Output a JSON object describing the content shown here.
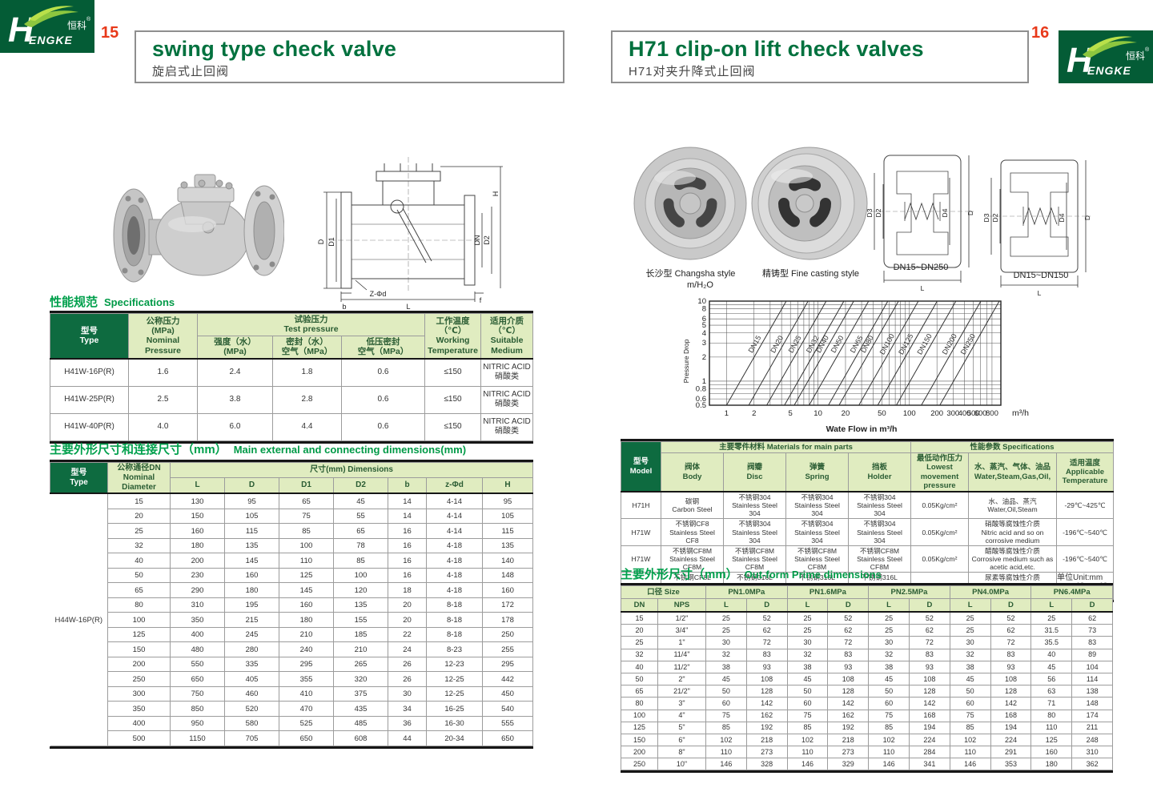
{
  "header": {
    "left_page_no": "15",
    "right_page_no": "16",
    "left_title": "swing type check valve",
    "left_subtitle": "旋启式止回阀",
    "right_title": "H71 clip-on lift check valves",
    "right_subtitle": "H71对夹升降式止回阀"
  },
  "logo": {
    "h": "H",
    "brand": "ENGKE",
    "cn": "恒科",
    "reg": "®"
  },
  "left_page": {
    "spec_title_cn": "性能规范",
    "spec_title_en": "Specifications",
    "spec_table": {
      "h_type": "型号\nType",
      "h_nominal": "公称压力\n(MPa)\nNominal\nPressure",
      "h_test": "试验压力\nTest pressure",
      "h_strength": "强度（水）\n(MPa)",
      "h_seal": "密封（水）\n空气（MPa）",
      "h_lowseal": "低压密封\n空气（MPa）",
      "h_temp": "工作温度（℃）\nWorking\nTemperature",
      "h_medium": "适用介质（℃）\nSuitable\nMedium",
      "rows": [
        {
          "type": "H41W-16P(R)",
          "nominal": "1.6",
          "strength": "2.4",
          "seal": "1.8",
          "lowseal": "0.6",
          "temp": "≤150",
          "medium": "NITRIC ACID\n硝酸类"
        },
        {
          "type": "H41W-25P(R)",
          "nominal": "2.5",
          "strength": "3.8",
          "seal": "2.8",
          "lowseal": "0.6",
          "temp": "≤150",
          "medium": "NITRIC ACID\n硝酸类"
        },
        {
          "type": "H41W-40P(R)",
          "nominal": "4.0",
          "strength": "6.0",
          "seal": "4.4",
          "lowseal": "0.6",
          "temp": "≤150",
          "medium": "NITRIC ACID\n硝酸类"
        }
      ]
    },
    "dims_title_cn": "主要外形尺寸和连接尺寸（mm）",
    "dims_title_en": "Main external and connecting dimensions(mm)",
    "dims_table": {
      "h_type": "型号\nType",
      "h_dn": "公称通径DN\nNominal\nDiameter",
      "h_dims": "尺寸(mm) Dimensions",
      "cols": [
        "L",
        "D",
        "D1",
        "D2",
        "b",
        "z-Φd",
        "H"
      ],
      "type_label": "H44W-16P(R)",
      "rows": [
        [
          "15",
          "130",
          "95",
          "65",
          "45",
          "14",
          "4-14",
          "95"
        ],
        [
          "20",
          "150",
          "105",
          "75",
          "55",
          "14",
          "4-14",
          "105"
        ],
        [
          "25",
          "160",
          "115",
          "85",
          "65",
          "16",
          "4-14",
          "115"
        ],
        [
          "32",
          "180",
          "135",
          "100",
          "78",
          "16",
          "4-18",
          "135"
        ],
        [
          "40",
          "200",
          "145",
          "110",
          "85",
          "16",
          "4-18",
          "140"
        ],
        [
          "50",
          "230",
          "160",
          "125",
          "100",
          "16",
          "4-18",
          "148"
        ],
        [
          "65",
          "290",
          "180",
          "145",
          "120",
          "18",
          "4-18",
          "160"
        ],
        [
          "80",
          "310",
          "195",
          "160",
          "135",
          "20",
          "8-18",
          "172"
        ],
        [
          "100",
          "350",
          "215",
          "180",
          "155",
          "20",
          "8-18",
          "178"
        ],
        [
          "125",
          "400",
          "245",
          "210",
          "185",
          "22",
          "8-18",
          "250"
        ],
        [
          "150",
          "480",
          "280",
          "240",
          "210",
          "24",
          "8-23",
          "255"
        ],
        [
          "200",
          "550",
          "335",
          "295",
          "265",
          "26",
          "12-23",
          "295"
        ],
        [
          "250",
          "650",
          "405",
          "355",
          "320",
          "26",
          "12-25",
          "442"
        ],
        [
          "300",
          "750",
          "460",
          "410",
          "375",
          "30",
          "12-25",
          "450"
        ],
        [
          "350",
          "850",
          "520",
          "470",
          "435",
          "34",
          "16-25",
          "540"
        ],
        [
          "400",
          "950",
          "580",
          "525",
          "485",
          "36",
          "16-30",
          "555"
        ],
        [
          "500",
          "1150",
          "705",
          "650",
          "608",
          "44",
          "20-34",
          "650"
        ]
      ]
    },
    "drawing_labels": [
      "D",
      "D1",
      "DN",
      "D2",
      "H",
      "L",
      "b",
      "f",
      "Z-Φd"
    ]
  },
  "right_page": {
    "captions": [
      "长沙型 Changsha style",
      "精铸型 Fine casting style",
      "DN15~DN250",
      "DN15~DN150"
    ],
    "materials_table": {
      "h_model": "型号\nModel",
      "h_main": "主要零件材料 Materials for main parts",
      "h_spec": "性能参数 Specifications",
      "h_body": "阀体\nBody",
      "h_disc": "阀瓣\nDisc",
      "h_spring": "弹簧\nSpring",
      "h_holder": "挡板\nHolder",
      "h_pressure": "最低动作压力\nLowest movement\npressure",
      "h_medium": "水、蒸汽、气体、油品\nWater,Steam,Gas,Oil,",
      "h_temp": "适用温度\nApplicable\nTemperature",
      "rows": [
        {
          "model": "H71H",
          "body": "碳钢\nCarbon Steel",
          "disc": "不锈钢304\nStainless Steel 304",
          "spring": "不锈钢304\nStainless Steel 304",
          "holder": "不锈钢304\nStainless Steel 304",
          "pressure": "0.05Kg/cm²",
          "medium": "水、油品、蒸汽\nWater,Oil,Steam",
          "temp": "-29℃~425℃"
        },
        {
          "model": "H71W",
          "body": "不锈钢CF8\nStainless Steel CF8",
          "disc": "不锈钢304\nStainless Steel 304",
          "spring": "不锈钢304\nStainless Steel 304",
          "holder": "不锈钢304\nStainless Steel 304",
          "pressure": "0.05Kg/cm²",
          "medium": "硝酸等腐蚀性介质\nNitric acid and so on corrosive medium",
          "temp": "-196℃~540℃"
        },
        {
          "model": "H71W",
          "body": "不锈钢CF8M\nStainless Steel CF8M",
          "disc": "不锈钢CF8M\nStainless Steel CF8M",
          "spring": "不锈钢CF8M\nStainless Steel CF8M",
          "holder": "不锈钢CF8M\nStainless Steel CF8M",
          "pressure": "0.05Kg/cm²",
          "medium": "醋酸等腐蚀性介质\nCorrosive medium such as acetic acid,etc.",
          "temp": "-196℃~540℃"
        },
        {
          "model": "H71W",
          "body": "不锈钢CF8L\nStainless Steel CF8L",
          "disc": "不锈钢316L\nStainless Steel 316L",
          "spring": "不锈钢316L\nStainless Steel 316L",
          "holder": "不锈钢316L\nStainless Steel 316L",
          "pressure": "0.05Kg/cm²",
          "medium": "尿素等腐蚀性介质\nCorrosive medium such as urea,etc.",
          "temp": "-196℃~455℃"
        }
      ]
    },
    "outform_title_cn": "主要外形尺寸（mm）",
    "outform_title_en": "Out-form Prime dimensions",
    "unit_note": "单位Unit:mm",
    "outform_table": {
      "h_size": "口径 Size",
      "h_dn": "DN",
      "h_nps": "NPS",
      "h_l": "L",
      "h_d": "D",
      "pn_groups": [
        "PN1.0MPa",
        "PN1.6MPa",
        "PN2.5MPa",
        "PN4.0MPa",
        "PN6.4MPa"
      ],
      "rows": [
        [
          "15",
          "1/2\"",
          "25",
          "52",
          "25",
          "52",
          "25",
          "52",
          "25",
          "52",
          "25",
          "62"
        ],
        [
          "20",
          "3/4\"",
          "25",
          "62",
          "25",
          "62",
          "25",
          "62",
          "25",
          "62",
          "31.5",
          "73"
        ],
        [
          "25",
          "1\"",
          "30",
          "72",
          "30",
          "72",
          "30",
          "72",
          "30",
          "72",
          "35.5",
          "83"
        ],
        [
          "32",
          "11/4\"",
          "32",
          "83",
          "32",
          "83",
          "32",
          "83",
          "32",
          "83",
          "40",
          "89"
        ],
        [
          "40",
          "11/2\"",
          "38",
          "93",
          "38",
          "93",
          "38",
          "93",
          "38",
          "93",
          "45",
          "104"
        ],
        [
          "50",
          "2\"",
          "45",
          "108",
          "45",
          "108",
          "45",
          "108",
          "45",
          "108",
          "56",
          "114"
        ],
        [
          "65",
          "21/2\"",
          "50",
          "128",
          "50",
          "128",
          "50",
          "128",
          "50",
          "128",
          "63",
          "138"
        ],
        [
          "80",
          "3\"",
          "60",
          "142",
          "60",
          "142",
          "60",
          "142",
          "60",
          "142",
          "71",
          "148"
        ],
        [
          "100",
          "4\"",
          "75",
          "162",
          "75",
          "162",
          "75",
          "168",
          "75",
          "168",
          "80",
          "174"
        ],
        [
          "125",
          "5\"",
          "85",
          "192",
          "85",
          "192",
          "85",
          "194",
          "85",
          "194",
          "110",
          "211"
        ],
        [
          "150",
          "6\"",
          "102",
          "218",
          "102",
          "218",
          "102",
          "224",
          "102",
          "224",
          "125",
          "248"
        ],
        [
          "200",
          "8\"",
          "110",
          "273",
          "110",
          "273",
          "110",
          "284",
          "110",
          "291",
          "160",
          "310"
        ],
        [
          "250",
          "10\"",
          "146",
          "328",
          "146",
          "329",
          "146",
          "341",
          "146",
          "353",
          "180",
          "362"
        ]
      ]
    },
    "drawing_labels": [
      "D3",
      "D2",
      "D4",
      "D",
      "L"
    ]
  },
  "chart_data": {
    "type": "line",
    "title": "",
    "ylabel_top": "m/H₂O",
    "ylabel_side": "Pressure Drop",
    "xlabel": "Wate Flow in m³/h",
    "x_unit": "m³/h",
    "xlim": [
      0.65,
      1000
    ],
    "ylim": [
      0.5,
      10
    ],
    "x_ticks": [
      1,
      2,
      5,
      10,
      20,
      50,
      100,
      200,
      300,
      400,
      500,
      600,
      800
    ],
    "y_ticks": [
      10,
      8,
      6,
      5,
      4,
      3,
      2,
      1,
      0.8,
      0.6,
      0.5
    ],
    "x_grid": [
      1,
      2,
      3,
      4,
      5,
      6,
      7,
      8,
      9,
      10,
      20,
      30,
      40,
      50,
      60,
      70,
      80,
      90,
      100,
      200,
      300,
      400,
      500,
      600,
      700,
      800
    ],
    "y_grid": [
      0.5,
      0.6,
      0.7,
      0.8,
      0.9,
      1,
      2,
      3,
      4,
      5,
      6,
      7,
      8,
      9,
      10
    ],
    "grid": true,
    "legend_position": "on-line-labels",
    "series": [
      {
        "name": "DN15",
        "x": [
          1.0,
          4.5
        ],
        "y": [
          0.5,
          10
        ]
      },
      {
        "name": "DN20",
        "x": [
          1.75,
          7.8
        ],
        "y": [
          0.5,
          10
        ]
      },
      {
        "name": "DN25",
        "x": [
          2.75,
          12.3
        ],
        "y": [
          0.5,
          10
        ]
      },
      {
        "name": "DN32",
        "x": [
          4.3,
          19.2
        ],
        "y": [
          0.5,
          10
        ]
      },
      {
        "name": "DN40",
        "x": [
          5.5,
          24.6
        ],
        "y": [
          0.5,
          10
        ]
      },
      {
        "name": "DN50",
        "x": [
          8,
          35.8
        ],
        "y": [
          0.5,
          10
        ]
      },
      {
        "name": "DN65",
        "x": [
          13,
          58.1
        ],
        "y": [
          0.5,
          10
        ]
      },
      {
        "name": "DN80",
        "x": [
          17,
          76
        ],
        "y": [
          0.5,
          10
        ]
      },
      {
        "name": "DN100",
        "x": [
          28,
          125.2
        ],
        "y": [
          0.5,
          10
        ]
      },
      {
        "name": "DN125",
        "x": [
          45,
          201.2
        ],
        "y": [
          0.5,
          10
        ]
      },
      {
        "name": "DN150",
        "x": [
          72,
          322
        ],
        "y": [
          0.5,
          10
        ]
      },
      {
        "name": "DN200",
        "x": [
          135,
          603.7
        ],
        "y": [
          0.5,
          10
        ]
      },
      {
        "name": "DN250",
        "x": [
          215,
          961.5
        ],
        "y": [
          0.5,
          10
        ]
      }
    ]
  }
}
